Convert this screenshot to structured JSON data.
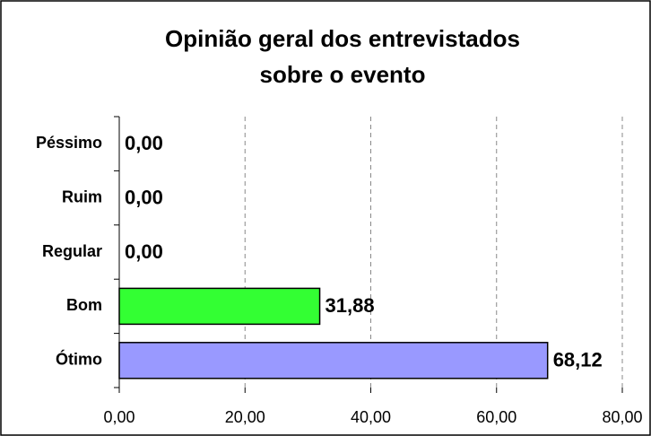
{
  "chart_data": {
    "type": "hbar",
    "title": [
      "Opinião geral dos entrevistados",
      "sobre o evento"
    ],
    "categories": [
      "Péssimo",
      "Ruim",
      "Regular",
      "Bom",
      "Ótimo"
    ],
    "values": [
      0,
      0,
      0,
      31.88,
      68.12
    ],
    "value_labels": [
      "0,00",
      "0,00",
      "0,00",
      "31,88",
      "68,12"
    ],
    "colors": [
      "#33ff33",
      "#33ff33",
      "#33ff33",
      "#33ff33",
      "#9999ff"
    ],
    "xlim": [
      0,
      80
    ],
    "xticks": [
      {
        "value": 0,
        "label": "0,00"
      },
      {
        "value": 20,
        "label": "20,00"
      },
      {
        "value": 40,
        "label": "40,00"
      },
      {
        "value": 60,
        "label": "60,00"
      },
      {
        "value": 80,
        "label": "80,00"
      }
    ],
    "grid": true
  }
}
